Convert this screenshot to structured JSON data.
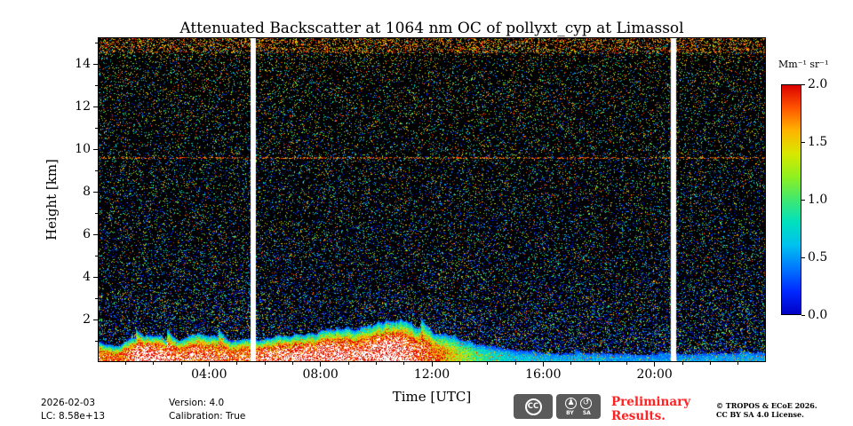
{
  "chart_data": {
    "type": "heatmap",
    "title": "Attenuated Backscatter at 1064 nm OC of pollyxt_cyp at Limassol",
    "xlabel": "Time [UTC]",
    "ylabel": "Height [km]",
    "x_range_hours": [
      0,
      24
    ],
    "x_major_ticks": [
      {
        "hour": 4,
        "label": "04:00"
      },
      {
        "hour": 8,
        "label": "08:00"
      },
      {
        "hour": 12,
        "label": "12:00"
      },
      {
        "hour": 16,
        "label": "16:00"
      },
      {
        "hour": 20,
        "label": "20:00"
      }
    ],
    "x_minor_tick_every_hours": 1,
    "y_range_km": [
      0,
      15.25
    ],
    "y_major_ticks_km": [
      2,
      4,
      6,
      8,
      10,
      12,
      14
    ],
    "y_minor_tick_every_km": 1,
    "grid": false,
    "plot_background_color": "#000000",
    "over_color": "#ffffff",
    "gap_color": "#ffffff",
    "colorbar": {
      "label": "Mm⁻¹ sr⁻¹",
      "min": 0.0,
      "max": 2.0,
      "ticks": [
        {
          "value": 2.0,
          "label": "2.0"
        },
        {
          "value": 1.5,
          "label": "1.5"
        },
        {
          "value": 1.0,
          "label": "1.0"
        },
        {
          "value": 0.5,
          "label": "0.5"
        },
        {
          "value": 0.0,
          "label": "0.0"
        }
      ]
    },
    "colormap_stops": [
      [
        0.0,
        "#0000c4"
      ],
      [
        0.1,
        "#0028ff"
      ],
      [
        0.2,
        "#0076ff"
      ],
      [
        0.3,
        "#00c0f0"
      ],
      [
        0.4,
        "#00e0c0"
      ],
      [
        0.5,
        "#40e870"
      ],
      [
        0.6,
        "#90f020"
      ],
      [
        0.7,
        "#d8e800"
      ],
      [
        0.8,
        "#ffb400"
      ],
      [
        0.9,
        "#ff5400"
      ],
      [
        1.0,
        "#dc0000"
      ]
    ],
    "data_gaps_hours": [
      [
        5.49,
        5.68
      ],
      [
        20.58,
        20.78
      ]
    ],
    "noise": {
      "base_density": 0.13,
      "low_alt_boost": 0.28,
      "scale_height_km": 3.0,
      "warm_top_above_km": 14.5,
      "warm_top_density": 0.22,
      "red_line_km": 9.6
    },
    "aerosol_layer_keyframes": [
      {
        "hour": 0.0,
        "top_km": 0.9,
        "peak": 2.0
      },
      {
        "hour": 0.7,
        "top_km": 0.7,
        "peak": 1.8
      },
      {
        "hour": 1.3,
        "top_km": 1.0,
        "peak": 2.3
      },
      {
        "hour": 1.8,
        "top_km": 1.1,
        "peak": 2.6
      },
      {
        "hour": 2.3,
        "top_km": 1.1,
        "peak": 2.3
      },
      {
        "hour": 3.0,
        "top_km": 0.95,
        "peak": 2.1
      },
      {
        "hour": 3.6,
        "top_km": 1.2,
        "peak": 2.2
      },
      {
        "hour": 4.2,
        "top_km": 1.1,
        "peak": 2.1
      },
      {
        "hour": 4.8,
        "top_km": 0.95,
        "peak": 2.0
      },
      {
        "hour": 5.4,
        "top_km": 1.05,
        "peak": 2.1
      },
      {
        "hour": 6.0,
        "top_km": 1.1,
        "peak": 2.2
      },
      {
        "hour": 6.8,
        "top_km": 1.25,
        "peak": 2.3
      },
      {
        "hour": 7.4,
        "top_km": 1.3,
        "peak": 2.4
      },
      {
        "hour": 8.0,
        "top_km": 1.4,
        "peak": 2.3
      },
      {
        "hour": 8.6,
        "top_km": 1.5,
        "peak": 2.5
      },
      {
        "hour": 9.2,
        "top_km": 1.5,
        "peak": 2.3
      },
      {
        "hour": 9.8,
        "top_km": 1.65,
        "peak": 2.4
      },
      {
        "hour": 10.4,
        "top_km": 1.8,
        "peak": 2.6
      },
      {
        "hour": 11.0,
        "top_km": 1.75,
        "peak": 2.4
      },
      {
        "hour": 11.6,
        "top_km": 1.55,
        "peak": 2.1
      },
      {
        "hour": 12.2,
        "top_km": 1.35,
        "peak": 1.8
      },
      {
        "hour": 12.8,
        "top_km": 1.15,
        "peak": 1.4
      },
      {
        "hour": 13.4,
        "top_km": 0.95,
        "peak": 1.1
      },
      {
        "hour": 14.0,
        "top_km": 0.8,
        "peak": 0.85
      },
      {
        "hour": 14.6,
        "top_km": 0.65,
        "peak": 0.7
      },
      {
        "hour": 15.2,
        "top_km": 0.55,
        "peak": 0.62
      },
      {
        "hour": 16.0,
        "top_km": 0.5,
        "peak": 0.58
      },
      {
        "hour": 17.0,
        "top_km": 0.46,
        "peak": 0.54
      },
      {
        "hour": 18.0,
        "top_km": 0.43,
        "peak": 0.5
      },
      {
        "hour": 19.0,
        "top_km": 0.41,
        "peak": 0.48
      },
      {
        "hour": 20.0,
        "top_km": 0.4,
        "peak": 0.47
      },
      {
        "hour": 21.0,
        "top_km": 0.42,
        "peak": 0.48
      },
      {
        "hour": 22.0,
        "top_km": 0.47,
        "peak": 0.5
      },
      {
        "hour": 23.0,
        "top_km": 0.5,
        "peak": 0.5
      },
      {
        "hour": 24.0,
        "top_km": 0.5,
        "peak": 0.5
      }
    ]
  },
  "footer": {
    "date": "2026-02-03",
    "lidar_constant": "LC: 8.58e+13",
    "version": "Version: 4.0",
    "calibration": "Calibration: True",
    "preliminary_line1": "Preliminary",
    "preliminary_line2": "Results.",
    "preliminary_color": "#ff2222",
    "copyright_line1": "© TROPOS & ECoE 2026.",
    "copyright_line2": "CC BY SA 4.0 License.",
    "badge": {
      "cc": "CC",
      "by_icon": "♟",
      "sa_icon": "↺",
      "caption": "BY SA"
    }
  }
}
